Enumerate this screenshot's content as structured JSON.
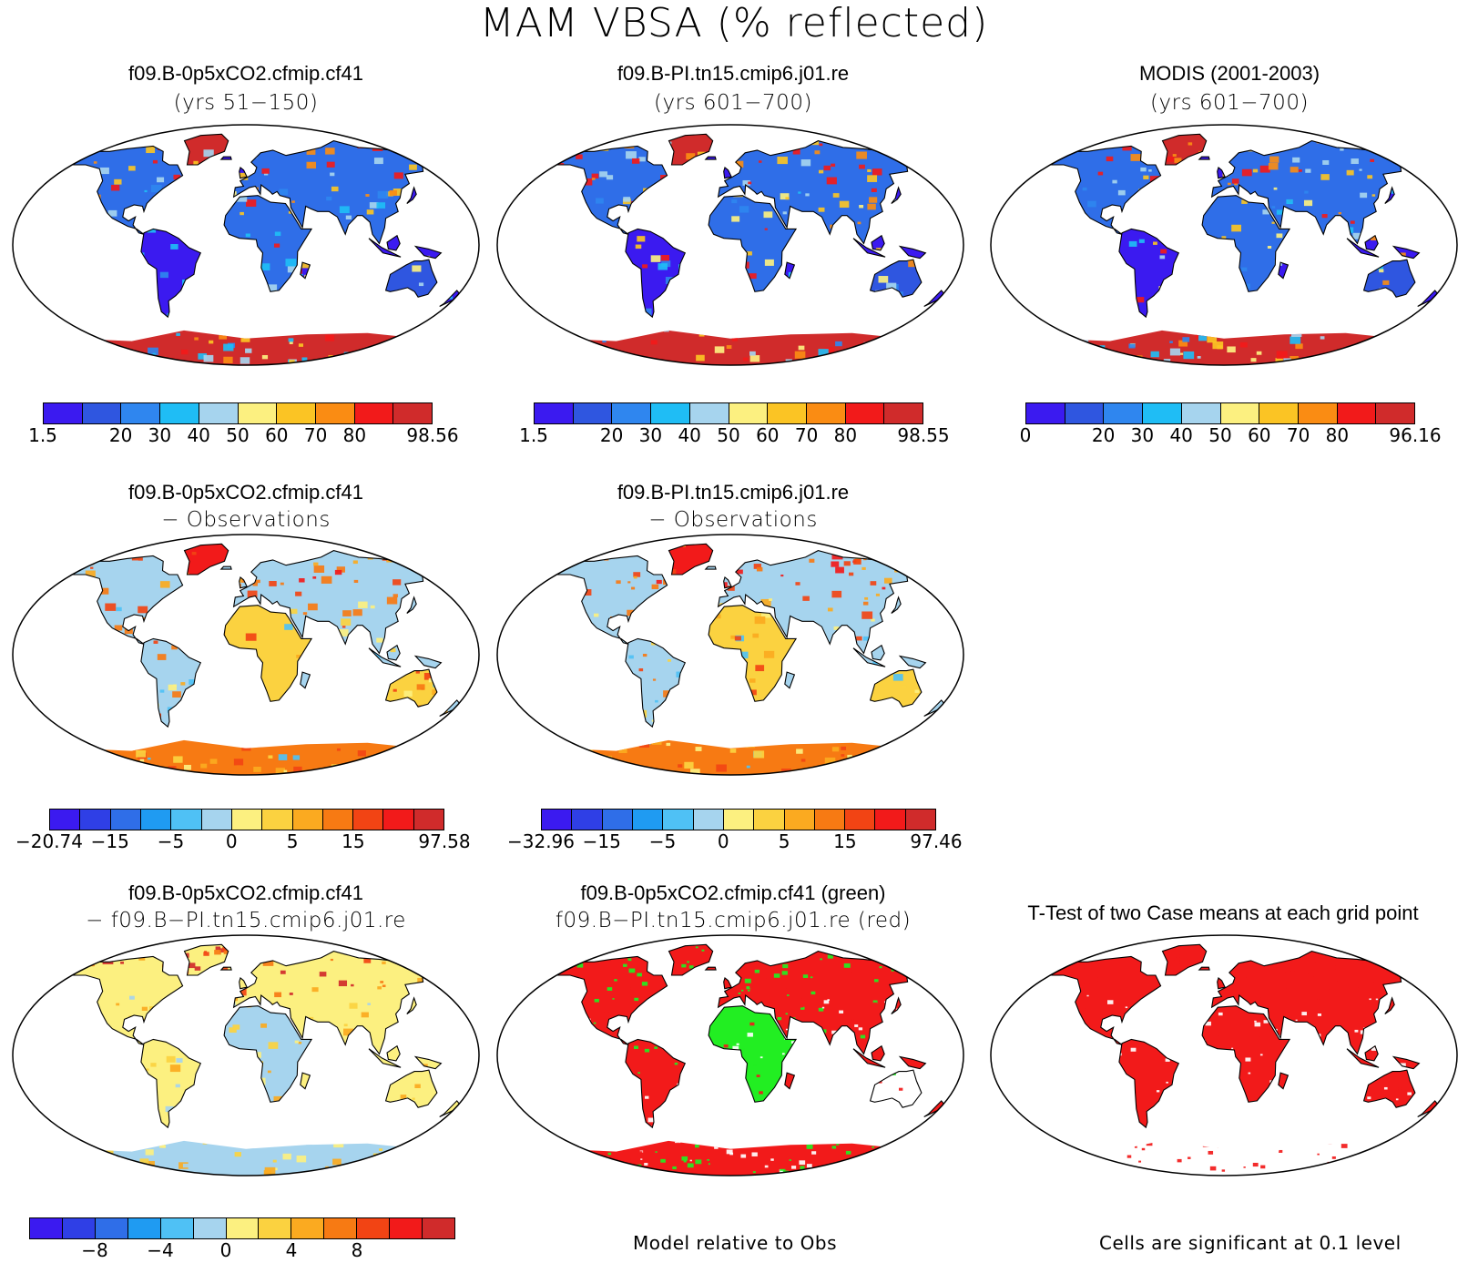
{
  "title": "MAM VBSA (% reflected)",
  "palettes": {
    "abs": [
      "#3b1af0",
      "#2f56e0",
      "#2f86ef",
      "#1fbdf5",
      "#a6d4ee",
      "#fcf080",
      "#fbc424",
      "#fa8c13",
      "#f21a1a",
      "#d02b2b"
    ],
    "diff": [
      "#3b1af0",
      "#2f3fe6",
      "#2f6ee8",
      "#1f9bf2",
      "#4fc1f5",
      "#a6d4ee",
      "#fcf080",
      "#fbd240",
      "#fbaa20",
      "#f77a13",
      "#f24414",
      "#f21a1a",
      "#d02b2b"
    ]
  },
  "panels": [
    {
      "id": "p1",
      "title_line1": "f09.B-0p5xCO2.cfmip.cf41",
      "title_line2": "(yrs 51−150)",
      "style": "abs",
      "colorbar": {
        "palette": "abs",
        "labels": [
          "1.5",
          "20",
          "30",
          "40",
          "50",
          "60",
          "70",
          "80",
          "98.56"
        ]
      }
    },
    {
      "id": "p2",
      "title_line1": "f09.B-PI.tn15.cmip6.j01.re",
      "title_line2": "(yrs 601−700)",
      "style": "abs",
      "colorbar": {
        "palette": "abs",
        "labels": [
          "1.5",
          "20",
          "30",
          "40",
          "50",
          "60",
          "70",
          "80",
          "98.55"
        ]
      }
    },
    {
      "id": "p3",
      "title_line1": "MODIS (2001-2003)",
      "title_line2": "(yrs 601−700)",
      "style": "abs",
      "colorbar": {
        "palette": "abs",
        "labels": [
          "0",
          "20",
          "30",
          "40",
          "50",
          "60",
          "70",
          "80",
          "96.16"
        ]
      }
    },
    {
      "id": "p4",
      "title_line1": "f09.B-0p5xCO2.cfmip.cf41",
      "title_line2": "− Observations",
      "style": "diffobs",
      "colorbar": {
        "palette": "diff",
        "labels": [
          "−20.74",
          "−15",
          "−5",
          "0",
          "5",
          "15",
          "97.58"
        ]
      }
    },
    {
      "id": "p5",
      "title_line1": "f09.B-PI.tn15.cmip6.j01.re",
      "title_line2": "− Observations",
      "style": "diffobs",
      "colorbar": {
        "palette": "diff",
        "labels": [
          "−32.96",
          "−15",
          "−5",
          "0",
          "5",
          "15",
          "97.46"
        ]
      }
    },
    {
      "id": "p6",
      "title_line1": "f09.B-0p5xCO2.cfmip.cf41",
      "title_line2": "− f09.B−PI.tn15.cmip6.j01.re",
      "style": "diffcase",
      "colorbar": {
        "palette": "diff",
        "labels": [
          "−8",
          "−4",
          "0",
          "4",
          "8"
        ]
      }
    },
    {
      "id": "p7",
      "title_line1": "f09.B-0p5xCO2.cfmip.cf41 (green)",
      "title_line2": "f09.B−PI.tn15.cmip6.j01.re (red)",
      "style": "compare",
      "note": "Model relative to Obs"
    },
    {
      "id": "p8",
      "title_line1": "T-Test of two Case means at each grid point",
      "title_line2": "",
      "style": "ttest",
      "note": "Cells are significant at 0.1 level"
    }
  ]
}
